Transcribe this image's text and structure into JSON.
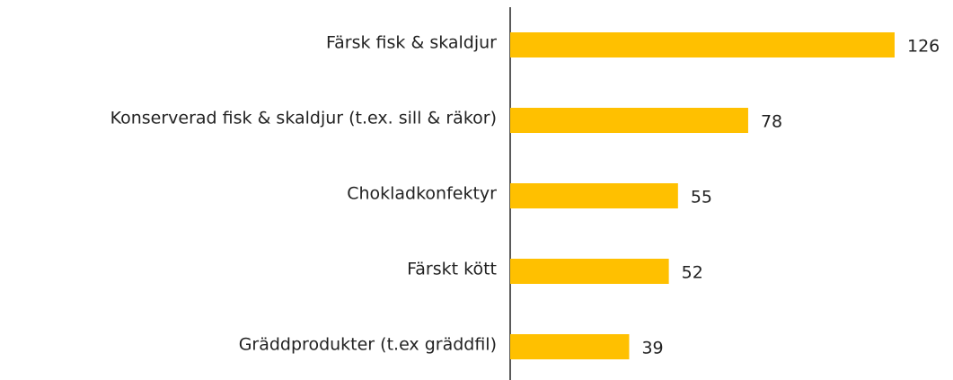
{
  "chart_data": {
    "type": "barh",
    "categories": [
      "Färsk fisk & skaldjur",
      "Konserverad fisk & skaldjur (t.ex. sill & räkor)",
      "Chokladkonfektyr",
      "Färskt kött",
      "Gräddprodukter (t.ex gräddfil)"
    ],
    "values": [
      126,
      78,
      55,
      52,
      39
    ],
    "color": "#FFC000"
  }
}
